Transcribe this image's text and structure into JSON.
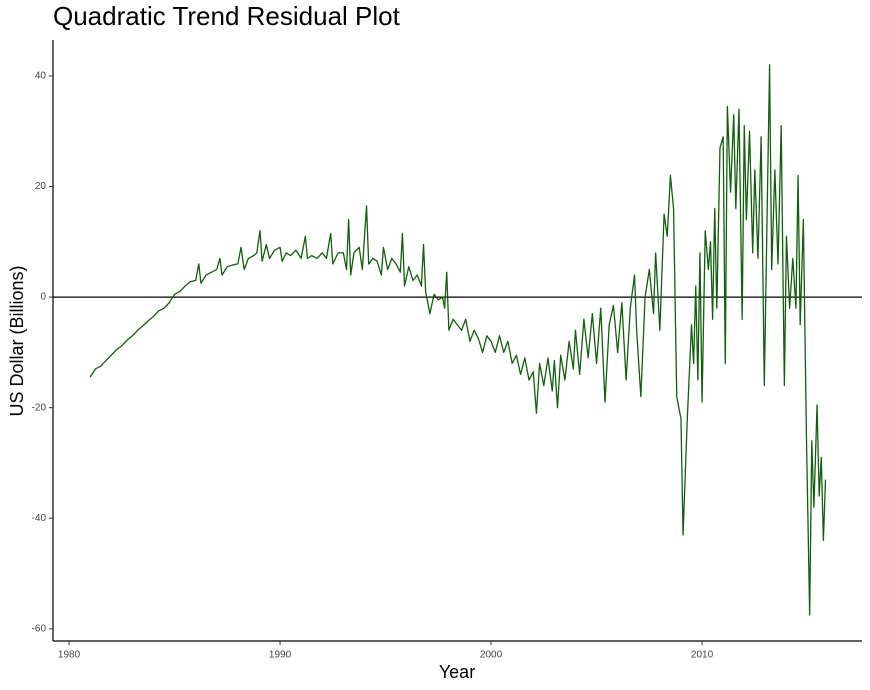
{
  "chart_data": {
    "type": "line",
    "title": "Quadratic Trend Residual Plot",
    "x_label": "Year",
    "y_label": "US Dollar (Billions)",
    "xlim": [
      1979.24,
      2017.58
    ],
    "ylim": [
      -62.2,
      46.5
    ],
    "xticks": [
      1980,
      1990,
      2000,
      2010
    ],
    "yticks": [
      -60,
      -40,
      -20,
      0,
      20,
      40
    ],
    "hline": 0,
    "series": [
      {
        "color": "#115e0c",
        "x": [
          1981.0,
          1981.25,
          1981.5,
          1981.75,
          1982.0,
          1982.25,
          1982.5,
          1982.75,
          1983.0,
          1983.25,
          1983.5,
          1983.75,
          1984.0,
          1984.25,
          1984.5,
          1984.75,
          1985.0,
          1985.25,
          1985.5,
          1985.75,
          1986.0,
          1986.15,
          1986.25,
          1986.5,
          1986.75,
          1987.0,
          1987.15,
          1987.25,
          1987.5,
          1987.75,
          1988.0,
          1988.15,
          1988.3,
          1988.5,
          1988.75,
          1988.9,
          1989.05,
          1989.15,
          1989.35,
          1989.5,
          1989.75,
          1990.0,
          1990.1,
          1990.3,
          1990.5,
          1990.75,
          1991.0,
          1991.2,
          1991.3,
          1991.5,
          1991.75,
          1992.0,
          1992.2,
          1992.4,
          1992.5,
          1992.75,
          1993.0,
          1993.15,
          1993.25,
          1993.35,
          1993.5,
          1993.75,
          1993.9,
          1994.1,
          1994.2,
          1994.4,
          1994.6,
          1994.8,
          1994.9,
          1995.1,
          1995.3,
          1995.5,
          1995.7,
          1995.8,
          1995.9,
          1996.1,
          1996.3,
          1996.5,
          1996.7,
          1996.8,
          1996.9,
          1997.1,
          1997.3,
          1997.5,
          1997.7,
          1997.8,
          1997.9,
          1998.0,
          1998.2,
          1998.4,
          1998.6,
          1998.8,
          1999.0,
          1999.2,
          1999.4,
          1999.6,
          1999.8,
          2000.0,
          2000.2,
          2000.4,
          2000.6,
          2000.8,
          2001.0,
          2001.2,
          2001.4,
          2001.6,
          2001.8,
          2002.0,
          2002.15,
          2002.3,
          2002.5,
          2002.7,
          2002.9,
          2003.0,
          2003.15,
          2003.3,
          2003.5,
          2003.7,
          2003.9,
          2004.0,
          2004.2,
          2004.4,
          2004.6,
          2004.8,
          2005.0,
          2005.2,
          2005.4,
          2005.6,
          2005.8,
          2006.0,
          2006.2,
          2006.4,
          2006.6,
          2006.8,
          2006.9,
          2007.1,
          2007.3,
          2007.5,
          2007.7,
          2007.8,
          2008.0,
          2008.2,
          2008.35,
          2008.5,
          2008.65,
          2008.8,
          2009.0,
          2009.1,
          2009.3,
          2009.5,
          2009.6,
          2009.7,
          2009.8,
          2009.9,
          2010.0,
          2010.15,
          2010.3,
          2010.4,
          2010.5,
          2010.6,
          2010.7,
          2010.85,
          2011.0,
          2011.1,
          2011.2,
          2011.35,
          2011.5,
          2011.6,
          2011.75,
          2011.9,
          2012.0,
          2012.1,
          2012.25,
          2012.4,
          2012.5,
          2012.65,
          2012.8,
          2012.95,
          2013.2,
          2013.3,
          2013.45,
          2013.6,
          2013.75,
          2013.9,
          2014.0,
          2014.15,
          2014.3,
          2014.45,
          2014.55,
          2014.65,
          2014.8,
          2014.95,
          2015.1,
          2015.2,
          2015.3,
          2015.45,
          2015.55,
          2015.65,
          2015.75,
          2015.85
        ],
        "values": [
          -14.5,
          -13,
          -12.5,
          -11.5,
          -10.5,
          -9.5,
          -8.8,
          -7.8,
          -7,
          -6,
          -5.2,
          -4.3,
          -3.5,
          -2.5,
          -2,
          -1,
          0.5,
          1,
          2,
          2.8,
          3,
          6,
          2.5,
          4,
          4.5,
          5,
          7,
          4,
          5.5,
          5.8,
          6,
          9,
          5,
          7,
          7.5,
          8,
          12,
          6.5,
          9.5,
          7,
          8.5,
          9,
          6.5,
          8,
          7.5,
          8.5,
          7,
          11,
          7,
          7.5,
          7,
          8,
          7,
          11.5,
          6,
          8,
          8,
          5,
          14,
          4,
          8,
          9,
          5,
          16.5,
          6,
          7,
          6.5,
          4,
          9,
          5,
          7,
          6,
          4.5,
          11.5,
          2,
          5.5,
          3,
          4,
          2,
          9.5,
          1,
          -3,
          0.5,
          -0.5,
          0,
          -2,
          4.5,
          -6,
          -4,
          -5,
          -6,
          -4,
          -8,
          -6,
          -7.5,
          -10,
          -7,
          -8,
          -10,
          -7,
          -10,
          -8,
          -12,
          -10.5,
          -14,
          -11,
          -15,
          -13.5,
          -21,
          -12,
          -16,
          -11,
          -17,
          -11.5,
          -20,
          -10.5,
          -15,
          -8,
          -13,
          -6,
          -14,
          -4,
          -11,
          -3,
          -12,
          -2,
          -19,
          -5,
          -1.5,
          -10,
          -1,
          -15,
          -2,
          4,
          -6,
          -18,
          0,
          5,
          -3,
          8,
          -6,
          15,
          11,
          22,
          16,
          -18,
          -22,
          -43,
          -22,
          -5,
          -12,
          2,
          -15,
          8,
          -19,
          12,
          5,
          10,
          -4,
          16,
          -2,
          27,
          29,
          -12,
          34.5,
          19,
          33,
          16,
          34,
          -4,
          31,
          14,
          30,
          8,
          23,
          7,
          29,
          -16,
          42,
          5,
          23,
          6,
          31,
          -16,
          11,
          -2,
          7,
          -2,
          22,
          -5,
          14,
          -26,
          -57.5,
          -26,
          -38,
          -19.5,
          -36,
          -29,
          -44,
          -33
        ]
      }
    ]
  }
}
